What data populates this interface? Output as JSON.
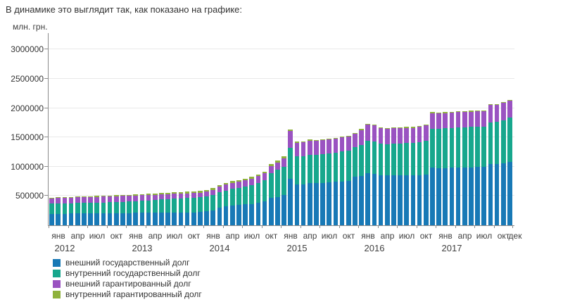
{
  "page": {
    "intro_text": "В динамике это выглядит так, как показано на графике:"
  },
  "chart_data": {
    "type": "bar",
    "stacked": true,
    "title": "",
    "ylabel": "млн. грн.",
    "xlabel": "",
    "grid": true,
    "legend_position": "bottom-left",
    "ylim": [
      0,
      3280000
    ],
    "y_ticks": [
      500000,
      1000000,
      1500000,
      2000000,
      2500000,
      3000000
    ],
    "x_quarter_labels": [
      "янв",
      "апр",
      "июл",
      "окт"
    ],
    "x_end_label": "дек",
    "years": [
      "2012",
      "2013",
      "2014",
      "2015",
      "2016",
      "2017"
    ],
    "months_per_year": 12,
    "series": [
      {
        "name": "внешний государственный долг",
        "color": "#1879b6",
        "values": [
          196000,
          197000,
          198500,
          199500,
          200500,
          202000,
          203000,
          204500,
          205500,
          206500,
          207500,
          208900,
          210000,
          211000,
          212500,
          213500,
          215000,
          216000,
          217500,
          218500,
          220000,
          221000,
          222000,
          223300,
          235000,
          255000,
          300000,
          320000,
          335000,
          345000,
          355000,
          365000,
          385000,
          405000,
          465000,
          486000,
          515000,
          790000,
          700000,
          702000,
          718000,
          716000,
          726000,
          734000,
          741000,
          750000,
          762000,
          826300,
          838000,
          890000,
          880000,
          855000,
          848000,
          852000,
          848000,
          852000,
          848000,
          855000,
          866000,
          980200,
          975000,
          977000,
          980000,
          985000,
          988000,
          990000,
          995000,
          992000,
          1040000,
          1042000,
          1060000,
          1080300
        ]
      },
      {
        "name": "внутренний государственный долг",
        "color": "#17a78d",
        "values": [
          172000,
          174500,
          176000,
          177500,
          179000,
          180500,
          182000,
          183500,
          185000,
          186500,
          188500,
          190300,
          196000,
          201500,
          207000,
          212500,
          218000,
          223500,
          229000,
          234500,
          240000,
          245500,
          251000,
          257000,
          260000,
          263000,
          268000,
          275000,
          285000,
          295000,
          305000,
          318000,
          335000,
          360000,
          425000,
          461000,
          482000,
          532000,
          478000,
          480000,
          488000,
          487000,
          492000,
          497000,
          502000,
          508000,
          515000,
          508000,
          532000,
          553000,
          548000,
          540000,
          537000,
          542000,
          545000,
          549000,
          553000,
          562000,
          573000,
          670600,
          676000,
          678000,
          680000,
          684000,
          686000,
          688000,
          692000,
          690000,
          720000,
          722000,
          735000,
          753400
        ]
      },
      {
        "name": "внешний гарантированный долг",
        "color": "#9a53c1",
        "values": [
          96000,
          96500,
          96000,
          96500,
          97000,
          97500,
          98000,
          98500,
          99000,
          99500,
          99500,
          100100,
          98000,
          96000,
          94000,
          92000,
          90000,
          88000,
          86000,
          84000,
          82000,
          80500,
          79000,
          77500,
          80000,
          86000,
          95000,
          100000,
          104000,
          107000,
          110000,
          113000,
          117000,
          120000,
          124000,
          125900,
          150000,
          293000,
          232000,
          234000,
          238000,
          237000,
          238000,
          239000,
          240000,
          240000,
          241000,
          226300,
          258000,
          277000,
          275000,
          263000,
          260000,
          262000,
          260000,
          262000,
          260000,
          262000,
          264000,
          259000,
          260000,
          261000,
          261000,
          262000,
          262000,
          263000,
          264000,
          264000,
          290000,
          293000,
          292000,
          294700
        ]
      },
      {
        "name": "внутренний гарантированный долг",
        "color": "#8fb23c",
        "values": [
          11000,
          11500,
          12000,
          12500,
          13000,
          13500,
          14000,
          14500,
          15000,
          15500,
          15800,
          16200,
          17000,
          18000,
          19000,
          20000,
          21000,
          22000,
          23000,
          24000,
          25000,
          25700,
          26400,
          27100,
          27200,
          27300,
          27400,
          27500,
          27500,
          27600,
          27600,
          27700,
          27800,
          27800,
          27900,
          27900,
          28000,
          25000,
          21000,
          19000,
          17000,
          16000,
          15000,
          14000,
          13000,
          12500,
          12000,
          11600,
          15000,
          15000,
          15000,
          16000,
          16000,
          17000,
          17000,
          17000,
          18000,
          18000,
          19000,
          19900,
          14000,
          14000,
          14000,
          14000,
          14000,
          14000,
          14000,
          14000,
          13000,
          13000,
          13000,
          13300
        ]
      }
    ]
  }
}
